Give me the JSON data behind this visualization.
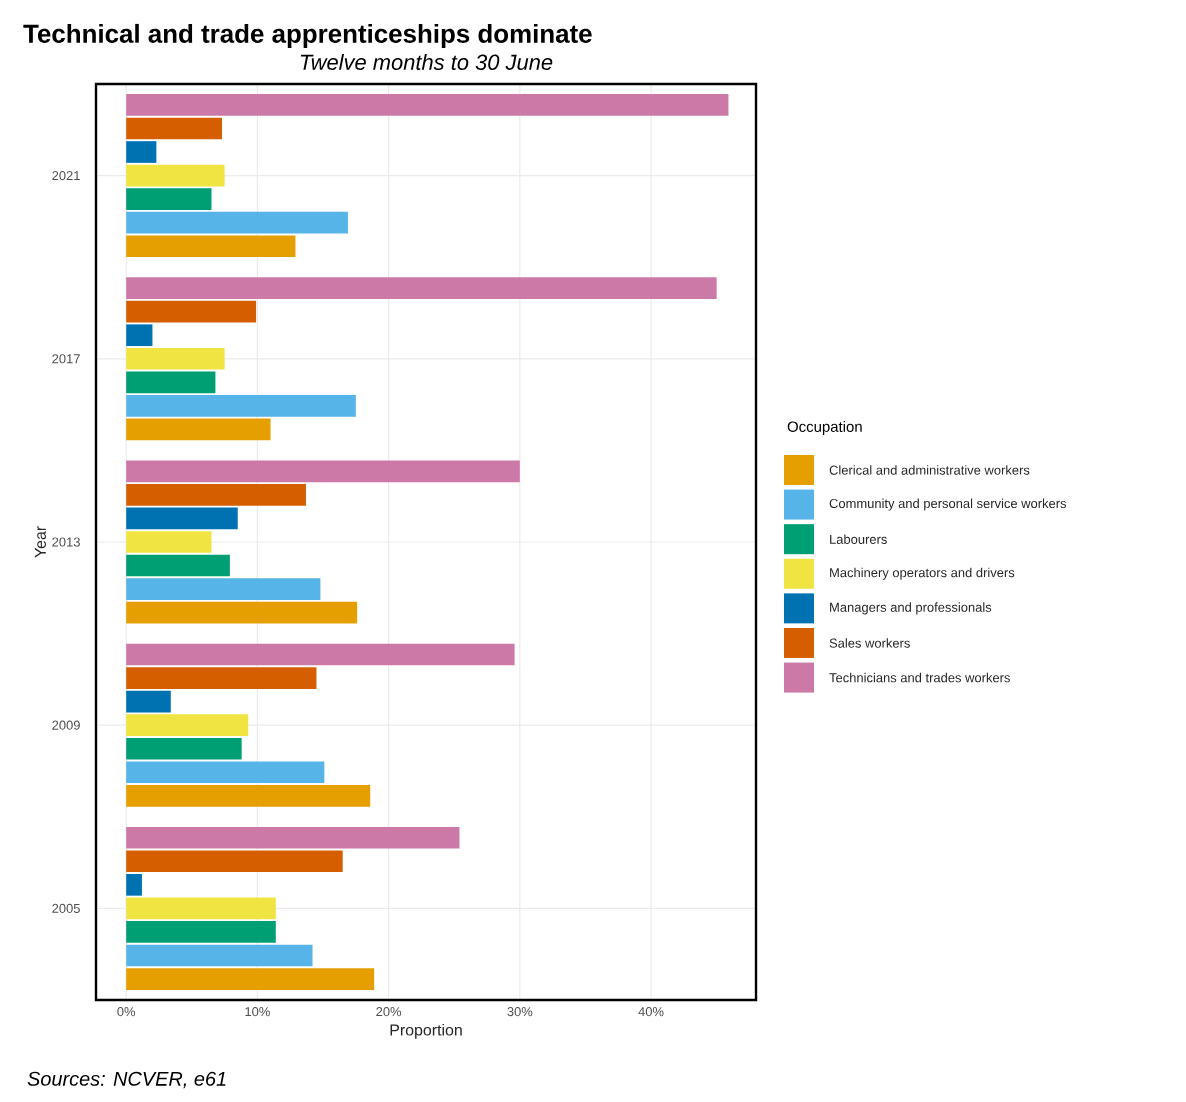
{
  "chart_data": {
    "type": "bar",
    "orientation": "horizontal",
    "title": "Technical and trade apprenticeships dominate",
    "subtitle": "Twelve months to 30 June",
    "xlabel": "Proportion",
    "ylabel": "Year",
    "legend_title": "Occupation",
    "legend": "right",
    "grid": true,
    "categories": [
      "2021",
      "2017",
      "2013",
      "2009",
      "2005"
    ],
    "series": [
      {
        "name": "Clerical and administrative workers",
        "color": "#e69f00",
        "values": [
          12.9,
          11.0,
          17.6,
          18.6,
          18.9
        ]
      },
      {
        "name": "Community and personal service workers",
        "color": "#56b4e9",
        "values": [
          16.9,
          17.5,
          14.8,
          15.1,
          14.2
        ]
      },
      {
        "name": "Labourers",
        "color": "#009e73",
        "values": [
          6.5,
          6.8,
          7.9,
          8.8,
          11.4
        ]
      },
      {
        "name": "Machinery operators and drivers",
        "color": "#f0e442",
        "values": [
          7.5,
          7.5,
          6.5,
          9.3,
          11.4
        ]
      },
      {
        "name": "Managers and professionals",
        "color": "#0072b2",
        "values": [
          2.3,
          2.0,
          8.5,
          3.4,
          1.2
        ]
      },
      {
        "name": "Sales workers",
        "color": "#d55e00",
        "values": [
          7.3,
          9.9,
          13.7,
          14.5,
          16.5
        ]
      },
      {
        "name": "Technicians and trades workers",
        "color": "#cc79a7",
        "values": [
          45.9,
          45.0,
          30.0,
          29.6,
          25.4
        ]
      }
    ],
    "xlim": [
      -2.3,
      48
    ],
    "xticks": [
      {
        "value": 0,
        "label": "0%"
      },
      {
        "value": 10,
        "label": "10%"
      },
      {
        "value": 20,
        "label": "20%"
      },
      {
        "value": 30,
        "label": "30%"
      },
      {
        "value": 40,
        "label": "40%"
      }
    ],
    "annotations": [
      "Sources: NCVER, e61"
    ]
  }
}
